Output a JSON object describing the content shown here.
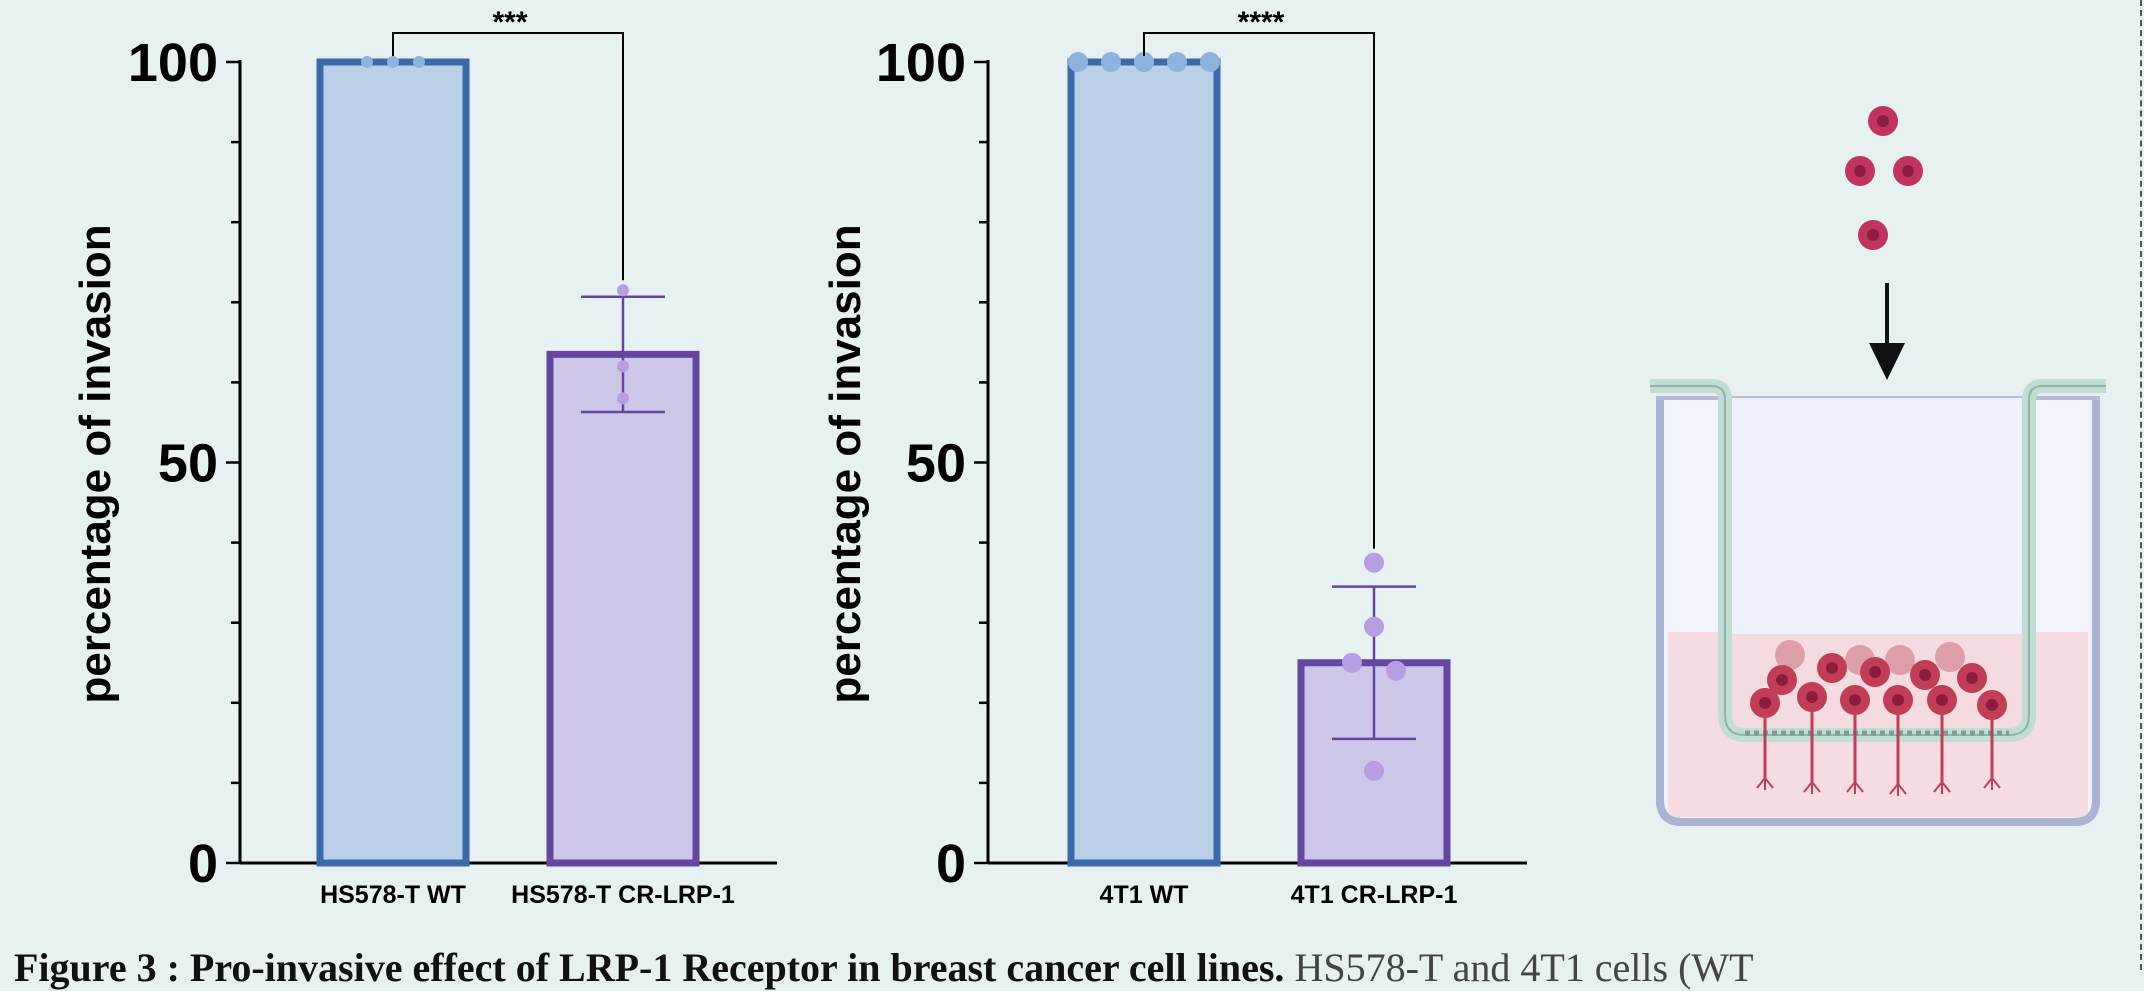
{
  "chart_data": [
    {
      "type": "bar",
      "categories": [
        "HS578-T WT",
        "HS578-T CR-LRP-1"
      ],
      "values": [
        100,
        63.5
      ],
      "error": [
        null,
        7.2
      ],
      "points": [
        [
          100,
          100,
          100
        ],
        [
          71.5,
          62,
          58
        ]
      ],
      "ylabel": "percentage of invasion",
      "ylim": [
        0,
        100
      ],
      "yticks": [
        "0",
        "50",
        "100"
      ],
      "significance": "***",
      "colors": {
        "wt_edge": "#3a6aa8",
        "wt_fill": "#b9d0e6",
        "ko_edge": "#6445a0",
        "ko_fill": "#cdc6e6",
        "wt_dot": "#8db4de",
        "ko_dot": "#b79ee0"
      }
    },
    {
      "type": "bar",
      "categories": [
        "4T1 WT",
        "4T1 CR-LRP-1"
      ],
      "values": [
        100,
        25
      ],
      "error": [
        null,
        9.5
      ],
      "points": [
        [
          100,
          100,
          100,
          100,
          100
        ],
        [
          37.5,
          29.5,
          25,
          24,
          11.5
        ]
      ],
      "ylabel": "percentage of invasion",
      "ylim": [
        0,
        100
      ],
      "yticks": [
        "0",
        "50",
        "100"
      ],
      "significance": "****",
      "colors": {
        "wt_edge": "#3a6aa8",
        "wt_fill": "#b9d0e6",
        "ko_edge": "#6445a0",
        "ko_fill": "#cdc6e6",
        "wt_dot": "#8db4de",
        "ko_dot": "#b79ee0"
      }
    }
  ],
  "caption": {
    "bold": "Figure 3 : Pro-invasive effect of LRP-1 Receptor in breast cancer cell lines.",
    "rest": " HS578-T and 4T1 cells (WT"
  }
}
